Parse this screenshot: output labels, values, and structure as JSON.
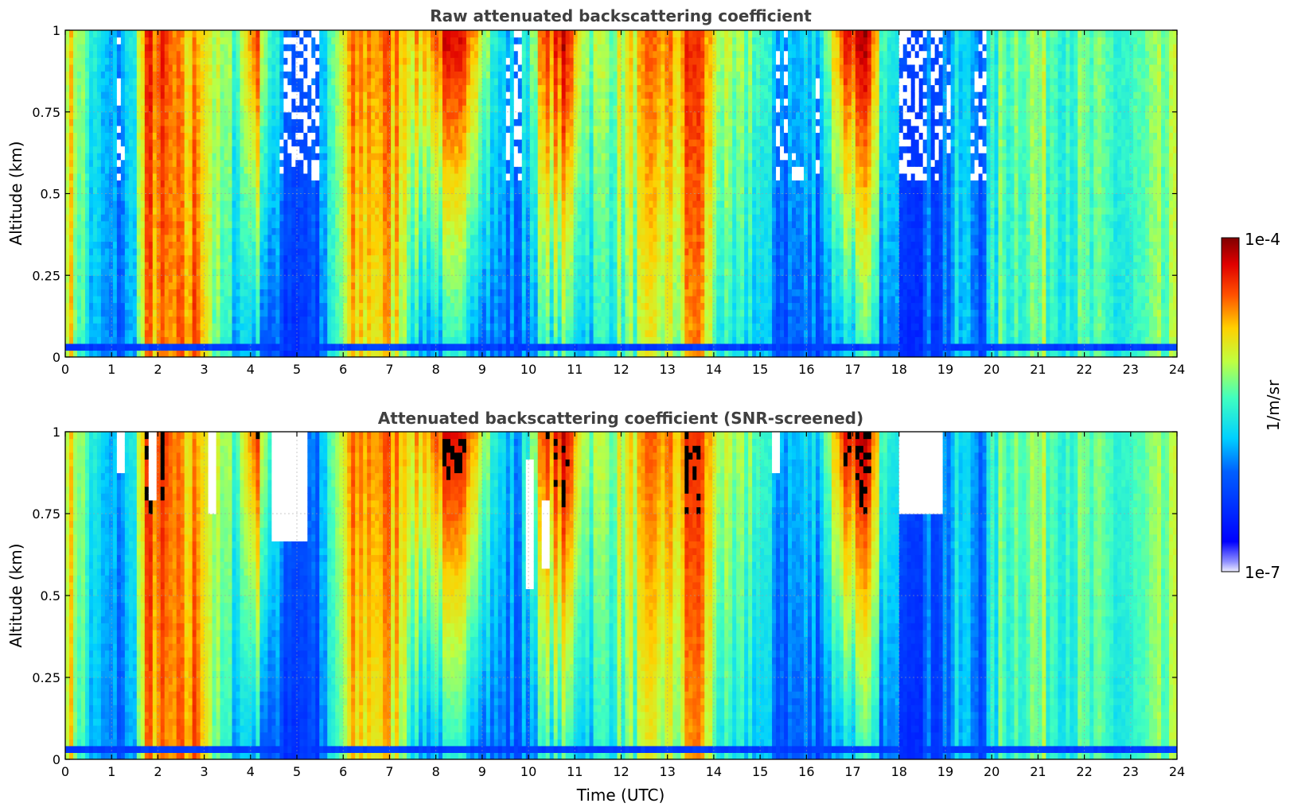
{
  "chart_data": {
    "type": "heatmap",
    "panels": [
      {
        "title": "Raw attenuated backscattering coefficient",
        "xlabel": "",
        "ylabel": "Altitude (km)",
        "xlim": [
          0,
          24
        ],
        "ylim": [
          0,
          1
        ],
        "xticks": [
          "0",
          "1",
          "2",
          "3",
          "4",
          "5",
          "6",
          "7",
          "8",
          "9",
          "10",
          "11",
          "12",
          "13",
          "14",
          "15",
          "16",
          "17",
          "18",
          "19",
          "20",
          "21",
          "22",
          "23",
          "24"
        ],
        "yticks": [
          "0",
          "0.25",
          "0.5",
          "0.75",
          "1"
        ],
        "screened": false
      },
      {
        "title": "Attenuated backscattering coefficient (SNR-screened)",
        "xlabel": "Time (UTC)",
        "ylabel": "Altitude (km)",
        "xlim": [
          0,
          24
        ],
        "ylim": [
          0,
          1
        ],
        "xticks": [
          "0",
          "1",
          "2",
          "3",
          "4",
          "5",
          "6",
          "7",
          "8",
          "9",
          "10",
          "11",
          "12",
          "13",
          "14",
          "15",
          "16",
          "17",
          "18",
          "19",
          "20",
          "21",
          "22",
          "23",
          "24"
        ],
        "yticks": [
          "0",
          "0.25",
          "0.5",
          "0.75",
          "1"
        ],
        "screened": true
      }
    ],
    "colorbar": {
      "label": "1/m/sr",
      "max_label": "1e-4",
      "min_label": "1e-7",
      "scale": "log",
      "colormap": "jet"
    },
    "grid": true,
    "time_profile": [
      {
        "t": 0.0,
        "surface": 0.75,
        "top": 0.72
      },
      {
        "t": 0.3,
        "surface": 0.55,
        "top": 0.62
      },
      {
        "t": 0.6,
        "surface": 0.35,
        "top": 0.45
      },
      {
        "t": 1.0,
        "surface": 0.3,
        "top": 0.35
      },
      {
        "t": 1.4,
        "surface": 0.32,
        "top": 0.42
      },
      {
        "t": 1.8,
        "surface": 0.78,
        "top": 0.86
      },
      {
        "t": 2.2,
        "surface": 0.74,
        "top": 0.82
      },
      {
        "t": 2.6,
        "surface": 0.76,
        "top": 0.7
      },
      {
        "t": 2.9,
        "surface": 0.84,
        "top": 0.78
      },
      {
        "t": 3.3,
        "surface": 0.5,
        "top": 0.6
      },
      {
        "t": 3.7,
        "surface": 0.4,
        "top": 0.55
      },
      {
        "t": 4.1,
        "surface": 0.4,
        "top": 0.88
      },
      {
        "t": 4.5,
        "surface": 0.25,
        "top": 0.45
      },
      {
        "t": 5.0,
        "surface": 0.22,
        "top": 0.3
      },
      {
        "t": 5.5,
        "surface": 0.25,
        "top": 0.33
      },
      {
        "t": 5.8,
        "surface": 0.45,
        "top": 0.55
      },
      {
        "t": 6.2,
        "surface": 0.68,
        "top": 0.78
      },
      {
        "t": 6.8,
        "surface": 0.72,
        "top": 0.8
      },
      {
        "t": 7.3,
        "surface": 0.65,
        "top": 0.78
      },
      {
        "t": 7.6,
        "surface": 0.38,
        "top": 0.72
      },
      {
        "t": 8.2,
        "surface": 0.4,
        "top": 0.88
      },
      {
        "t": 8.8,
        "surface": 0.42,
        "top": 0.85
      },
      {
        "t": 9.3,
        "surface": 0.3,
        "top": 0.45
      },
      {
        "t": 9.8,
        "surface": 0.28,
        "top": 0.35
      },
      {
        "t": 10.3,
        "surface": 0.45,
        "top": 0.8
      },
      {
        "t": 10.8,
        "surface": 0.48,
        "top": 0.92
      },
      {
        "t": 11.3,
        "surface": 0.42,
        "top": 0.6
      },
      {
        "t": 11.8,
        "surface": 0.5,
        "top": 0.62
      },
      {
        "t": 12.3,
        "surface": 0.55,
        "top": 0.7
      },
      {
        "t": 12.8,
        "surface": 0.62,
        "top": 0.8
      },
      {
        "t": 13.2,
        "surface": 0.58,
        "top": 0.75
      },
      {
        "t": 13.6,
        "surface": 0.82,
        "top": 0.9
      },
      {
        "t": 14.0,
        "surface": 0.55,
        "top": 0.7
      },
      {
        "t": 14.4,
        "surface": 0.38,
        "top": 0.55
      },
      {
        "t": 14.8,
        "surface": 0.45,
        "top": 0.6
      },
      {
        "t": 15.3,
        "surface": 0.3,
        "top": 0.4
      },
      {
        "t": 15.8,
        "surface": 0.28,
        "top": 0.38
      },
      {
        "t": 16.3,
        "surface": 0.3,
        "top": 0.45
      },
      {
        "t": 16.8,
        "surface": 0.4,
        "top": 0.9
      },
      {
        "t": 17.3,
        "surface": 0.45,
        "top": 0.92
      },
      {
        "t": 17.7,
        "surface": 0.3,
        "top": 0.5
      },
      {
        "t": 18.2,
        "surface": 0.25,
        "top": 0.3
      },
      {
        "t": 18.8,
        "surface": 0.26,
        "top": 0.3
      },
      {
        "t": 19.3,
        "surface": 0.38,
        "top": 0.42
      },
      {
        "t": 19.8,
        "surface": 0.3,
        "top": 0.35
      },
      {
        "t": 20.2,
        "surface": 0.5,
        "top": 0.55
      },
      {
        "t": 20.8,
        "surface": 0.55,
        "top": 0.6
      },
      {
        "t": 21.5,
        "surface": 0.52,
        "top": 0.55
      },
      {
        "t": 22.2,
        "surface": 0.48,
        "top": 0.52
      },
      {
        "t": 23.0,
        "surface": 0.45,
        "top": 0.5
      },
      {
        "t": 23.6,
        "surface": 0.52,
        "top": 0.55
      },
      {
        "t": 24.0,
        "surface": 0.55,
        "top": 0.58
      }
    ],
    "screened_regions": [
      {
        "t0": 1.15,
        "t1": 1.3,
        "z0": 0.88,
        "z1": 1.0
      },
      {
        "t0": 3.05,
        "t1": 3.3,
        "z0": 0.76,
        "z1": 1.0
      },
      {
        "t0": 4.45,
        "t1": 5.25,
        "z0": 0.66,
        "z1": 1.0
      },
      {
        "t0": 9.95,
        "t1": 10.15,
        "z0": 0.52,
        "z1": 0.92
      },
      {
        "t0": 10.3,
        "t1": 10.45,
        "z0": 0.58,
        "z1": 0.8
      },
      {
        "t0": 15.25,
        "t1": 15.4,
        "z0": 0.88,
        "z1": 1.0
      },
      {
        "t0": 18.0,
        "t1": 18.95,
        "z0": 0.74,
        "z1": 1.0
      },
      {
        "t0": 1.8,
        "t1": 2.0,
        "z0": 0.8,
        "z1": 1.0
      }
    ]
  }
}
